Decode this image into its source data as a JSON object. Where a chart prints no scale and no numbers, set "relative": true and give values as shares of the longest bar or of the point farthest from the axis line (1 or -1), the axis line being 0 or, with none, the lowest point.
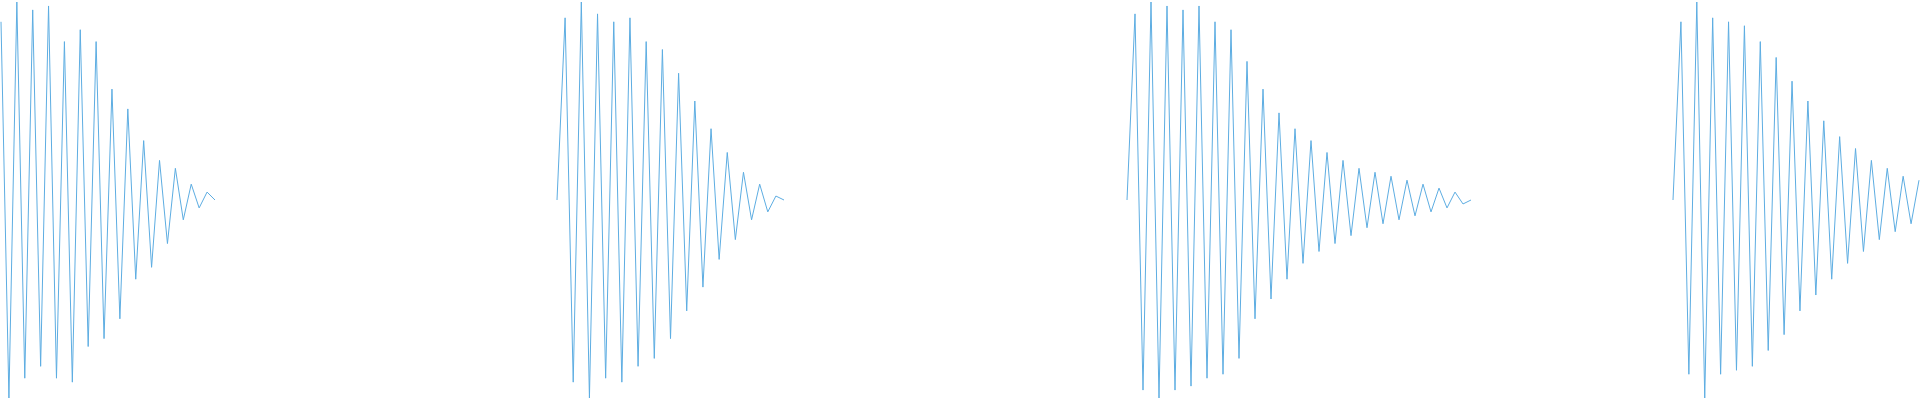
{
  "chart_data": [
    {
      "type": "line",
      "relative": true,
      "categories": [
        null,
        null,
        null,
        null,
        null,
        null,
        null,
        null,
        null,
        null,
        null,
        null,
        null,
        null,
        null,
        null,
        null,
        null,
        null,
        null,
        null,
        null,
        null,
        null,
        null,
        null,
        null,
        null
      ],
      "series": [
        {
          "color": "#5dade2",
          "values": [
            0.95,
            0,
            1,
            0.05,
            0.98,
            0.08,
            0.99,
            0.05,
            0.9,
            0.04,
            0.93,
            0.13,
            0.9,
            0.15,
            0.78,
            0.2,
            0.73,
            0.3,
            0.65,
            0.33,
            0.6,
            0.39,
            0.58,
            0.45,
            0.54,
            0.48,
            0.52,
            0.5
          ]
        }
      ]
    },
    {
      "type": "line",
      "relative": true,
      "categories": [
        null,
        null,
        null,
        null,
        null,
        null,
        null,
        null,
        null,
        null,
        null,
        null,
        null,
        null,
        null,
        null,
        null,
        null,
        null,
        null,
        null,
        null,
        null,
        null,
        null,
        null,
        null,
        null,
        null
      ],
      "series": [
        {
          "color": "#5dade2",
          "values": [
            0.5,
            0.96,
            0.04,
            1,
            0,
            0.97,
            0.05,
            0.95,
            0.04,
            0.96,
            0.08,
            0.9,
            0.1,
            0.88,
            0.15,
            0.82,
            0.22,
            0.75,
            0.28,
            0.68,
            0.35,
            0.62,
            0.4,
            0.57,
            0.45,
            0.54,
            0.47,
            0.51,
            0.5
          ]
        }
      ]
    },
    {
      "type": "line",
      "relative": true,
      "categories": [
        null,
        null,
        null,
        null,
        null,
        null,
        null,
        null,
        null,
        null,
        null,
        null,
        null,
        null,
        null,
        null,
        null,
        null,
        null,
        null,
        null,
        null,
        null,
        null,
        null,
        null,
        null,
        null,
        null,
        null,
        null,
        null,
        null,
        null,
        null,
        null,
        null,
        null,
        null,
        null,
        null,
        null,
        null,
        null
      ],
      "series": [
        {
          "color": "#5dade2",
          "values": [
            0.5,
            0.97,
            0.02,
            1,
            0,
            0.99,
            0.02,
            0.98,
            0.03,
            0.99,
            0.05,
            0.95,
            0.06,
            0.93,
            0.1,
            0.85,
            0.2,
            0.78,
            0.25,
            0.72,
            0.3,
            0.68,
            0.34,
            0.65,
            0.37,
            0.62,
            0.39,
            0.6,
            0.41,
            0.58,
            0.43,
            0.57,
            0.44,
            0.56,
            0.45,
            0.55,
            0.46,
            0.54,
            0.47,
            0.53,
            0.48,
            0.52,
            0.49,
            0.5
          ]
        }
      ]
    },
    {
      "type": "line",
      "relative": true,
      "categories": [
        null,
        null,
        null,
        null,
        null,
        null,
        null,
        null,
        null,
        null,
        null,
        null,
        null,
        null,
        null,
        null,
        null,
        null,
        null,
        null,
        null,
        null,
        null,
        null,
        null,
        null,
        null,
        null,
        null,
        null,
        null,
        null
      ],
      "series": [
        {
          "color": "#5dade2",
          "values": [
            0.5,
            0.95,
            0.06,
            1,
            0,
            0.96,
            0.06,
            0.95,
            0.07,
            0.94,
            0.08,
            0.9,
            0.12,
            0.86,
            0.16,
            0.8,
            0.22,
            0.75,
            0.26,
            0.7,
            0.3,
            0.66,
            0.34,
            0.63,
            0.37,
            0.6,
            0.4,
            0.58,
            0.42,
            0.56,
            0.44,
            0.55
          ]
        }
      ]
    }
  ]
}
